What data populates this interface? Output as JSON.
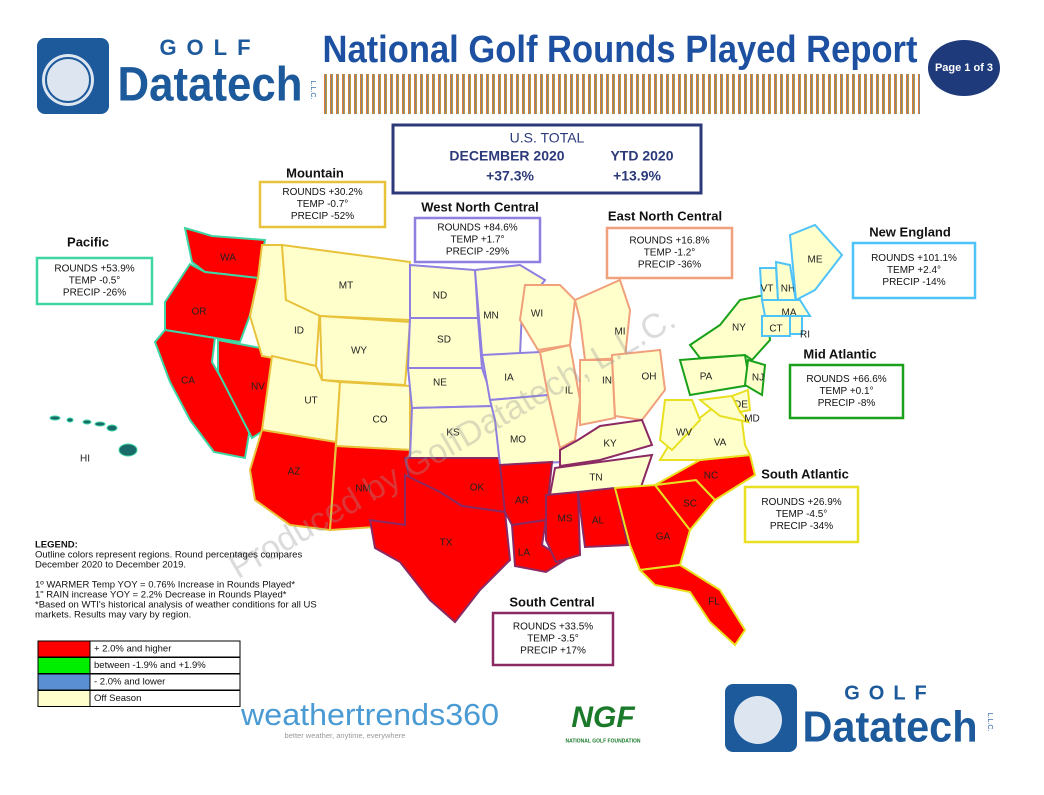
{
  "header": {
    "title": "National Golf Rounds Played Report",
    "page": "Page 1 of 3",
    "logo": {
      "top": "GOLF",
      "main": "Datatech",
      "suffix": "L.L.C."
    }
  },
  "us_total": {
    "label": "U.S. TOTAL",
    "periods": [
      {
        "name": "DECEMBER 2020",
        "value": "+37.3%"
      },
      {
        "name": "YTD  2020",
        "value": "+13.9%"
      }
    ]
  },
  "watermark": "Produced by GolfDatatech, L.L.C.",
  "regions": [
    {
      "name": "Pacific",
      "color": "#3fd6a6",
      "lines": [
        "ROUNDS  +53.9%",
        "TEMP -0.5°",
        "PRECIP -26%"
      ]
    },
    {
      "name": "Mountain",
      "color": "#e8c23a",
      "lines": [
        "ROUNDS  +30.2%",
        "TEMP -0.7°",
        "PRECIP -52%"
      ]
    },
    {
      "name": "West North Central",
      "color": "#8e7fe0",
      "lines": [
        "ROUNDS  +84.6%",
        "TEMP  +1.7°",
        "PRECIP -29%"
      ]
    },
    {
      "name": "East North Central",
      "color": "#f0a07a",
      "lines": [
        "ROUNDS  +16.8%",
        "TEMP -1.2°",
        "PRECIP -36%"
      ]
    },
    {
      "name": "New England",
      "color": "#4fc3f7",
      "lines": [
        "ROUNDS  +101.1%",
        "TEMP  +2.4°",
        "PRECIP -14%"
      ]
    },
    {
      "name": "Mid Atlantic",
      "color": "#1aa01a",
      "lines": [
        "ROUNDS  +66.6%",
        "TEMP  +0.1°",
        "PRECIP -8%"
      ]
    },
    {
      "name": "South Atlantic",
      "color": "#e8e020",
      "lines": [
        "ROUNDS  +26.9%",
        "TEMP  -4.5°",
        "PRECIP -34%"
      ]
    },
    {
      "name": "South Central",
      "color": "#8b2a62",
      "lines": [
        "ROUNDS  +33.5%",
        "TEMP  -3.5°",
        "PRECIP  +17%"
      ]
    }
  ],
  "legend": {
    "title": "LEGEND:",
    "text": [
      "Outline colors represent regions. Round percentages compares",
      "December 2020 to December 2019.",
      "",
      "1º WARMER Temp YOY = 0.76% Increase in Rounds Played*",
      "1\" RAIN increase YOY = 2.2% Decrease in Rounds Played*",
      "*Based on WTI's historical analysis of weather conditions for all US",
      "markets. Results may vary by region."
    ],
    "categories": [
      {
        "label": "+ 2.0% and higher",
        "color": "#ff0000"
      },
      {
        "label": "between -1.9% and +1.9%",
        "color": "#00ee00"
      },
      {
        "label": "- 2.0% and lower",
        "color": "#5b8fd4"
      },
      {
        "label": "Off Season",
        "color": "#ffffcc"
      }
    ]
  },
  "states": [
    {
      "label": "WA",
      "category": 0
    },
    {
      "label": "OR",
      "category": 0
    },
    {
      "label": "CA",
      "category": 0
    },
    {
      "label": "NV",
      "category": 0
    },
    {
      "label": "ID",
      "category": 3
    },
    {
      "label": "MT",
      "category": 3
    },
    {
      "label": "WY",
      "category": 3
    },
    {
      "label": "UT",
      "category": 3
    },
    {
      "label": "CO",
      "category": 3
    },
    {
      "label": "AZ",
      "category": 0
    },
    {
      "label": "NM",
      "category": 0
    },
    {
      "label": "ND",
      "category": 3
    },
    {
      "label": "SD",
      "category": 3
    },
    {
      "label": "NE",
      "category": 3
    },
    {
      "label": "KS",
      "category": 3
    },
    {
      "label": "OK",
      "category": 0
    },
    {
      "label": "TX",
      "category": 0
    },
    {
      "label": "MN",
      "category": 3
    },
    {
      "label": "IA",
      "category": 3
    },
    {
      "label": "MO",
      "category": 3
    },
    {
      "label": "AR",
      "category": 0
    },
    {
      "label": "LA",
      "category": 0
    },
    {
      "label": "WI",
      "category": 3
    },
    {
      "label": "IL",
      "category": 3
    },
    {
      "label": "MI",
      "category": 3
    },
    {
      "label": "IN",
      "category": 3
    },
    {
      "label": "OH",
      "category": 3
    },
    {
      "label": "KY",
      "category": 3
    },
    {
      "label": "TN",
      "category": 3
    },
    {
      "label": "MS",
      "category": 0
    },
    {
      "label": "AL",
      "category": 0
    },
    {
      "label": "GA",
      "category": 0
    },
    {
      "label": "FL",
      "category": 0
    },
    {
      "label": "SC",
      "category": 0
    },
    {
      "label": "NC",
      "category": 0
    },
    {
      "label": "VA",
      "category": 3
    },
    {
      "label": "WV",
      "category": 3
    },
    {
      "label": "PA",
      "category": 3
    },
    {
      "label": "NY",
      "category": 3
    },
    {
      "label": "NJ",
      "category": 3
    },
    {
      "label": "DE",
      "category": 3
    },
    {
      "label": "MD",
      "category": 3
    },
    {
      "label": "VT",
      "category": 3
    },
    {
      "label": "NH",
      "category": 3
    },
    {
      "label": "ME",
      "category": 3
    },
    {
      "label": "MA",
      "category": 3
    },
    {
      "label": "CT",
      "category": 3
    },
    {
      "label": "RI",
      "category": 3
    },
    {
      "label": "HI"
    }
  ],
  "footer": {
    "weathertrends": "weathertrends360",
    "weathertrends_tagline": "better weather, anytime, everywhere",
    "ngf": "NGF",
    "ngf_name": "NATIONAL GOLF FOUNDATION",
    "logo": {
      "top": "GOLF",
      "main": "Datatech",
      "suffix": "L.L.C."
    }
  }
}
